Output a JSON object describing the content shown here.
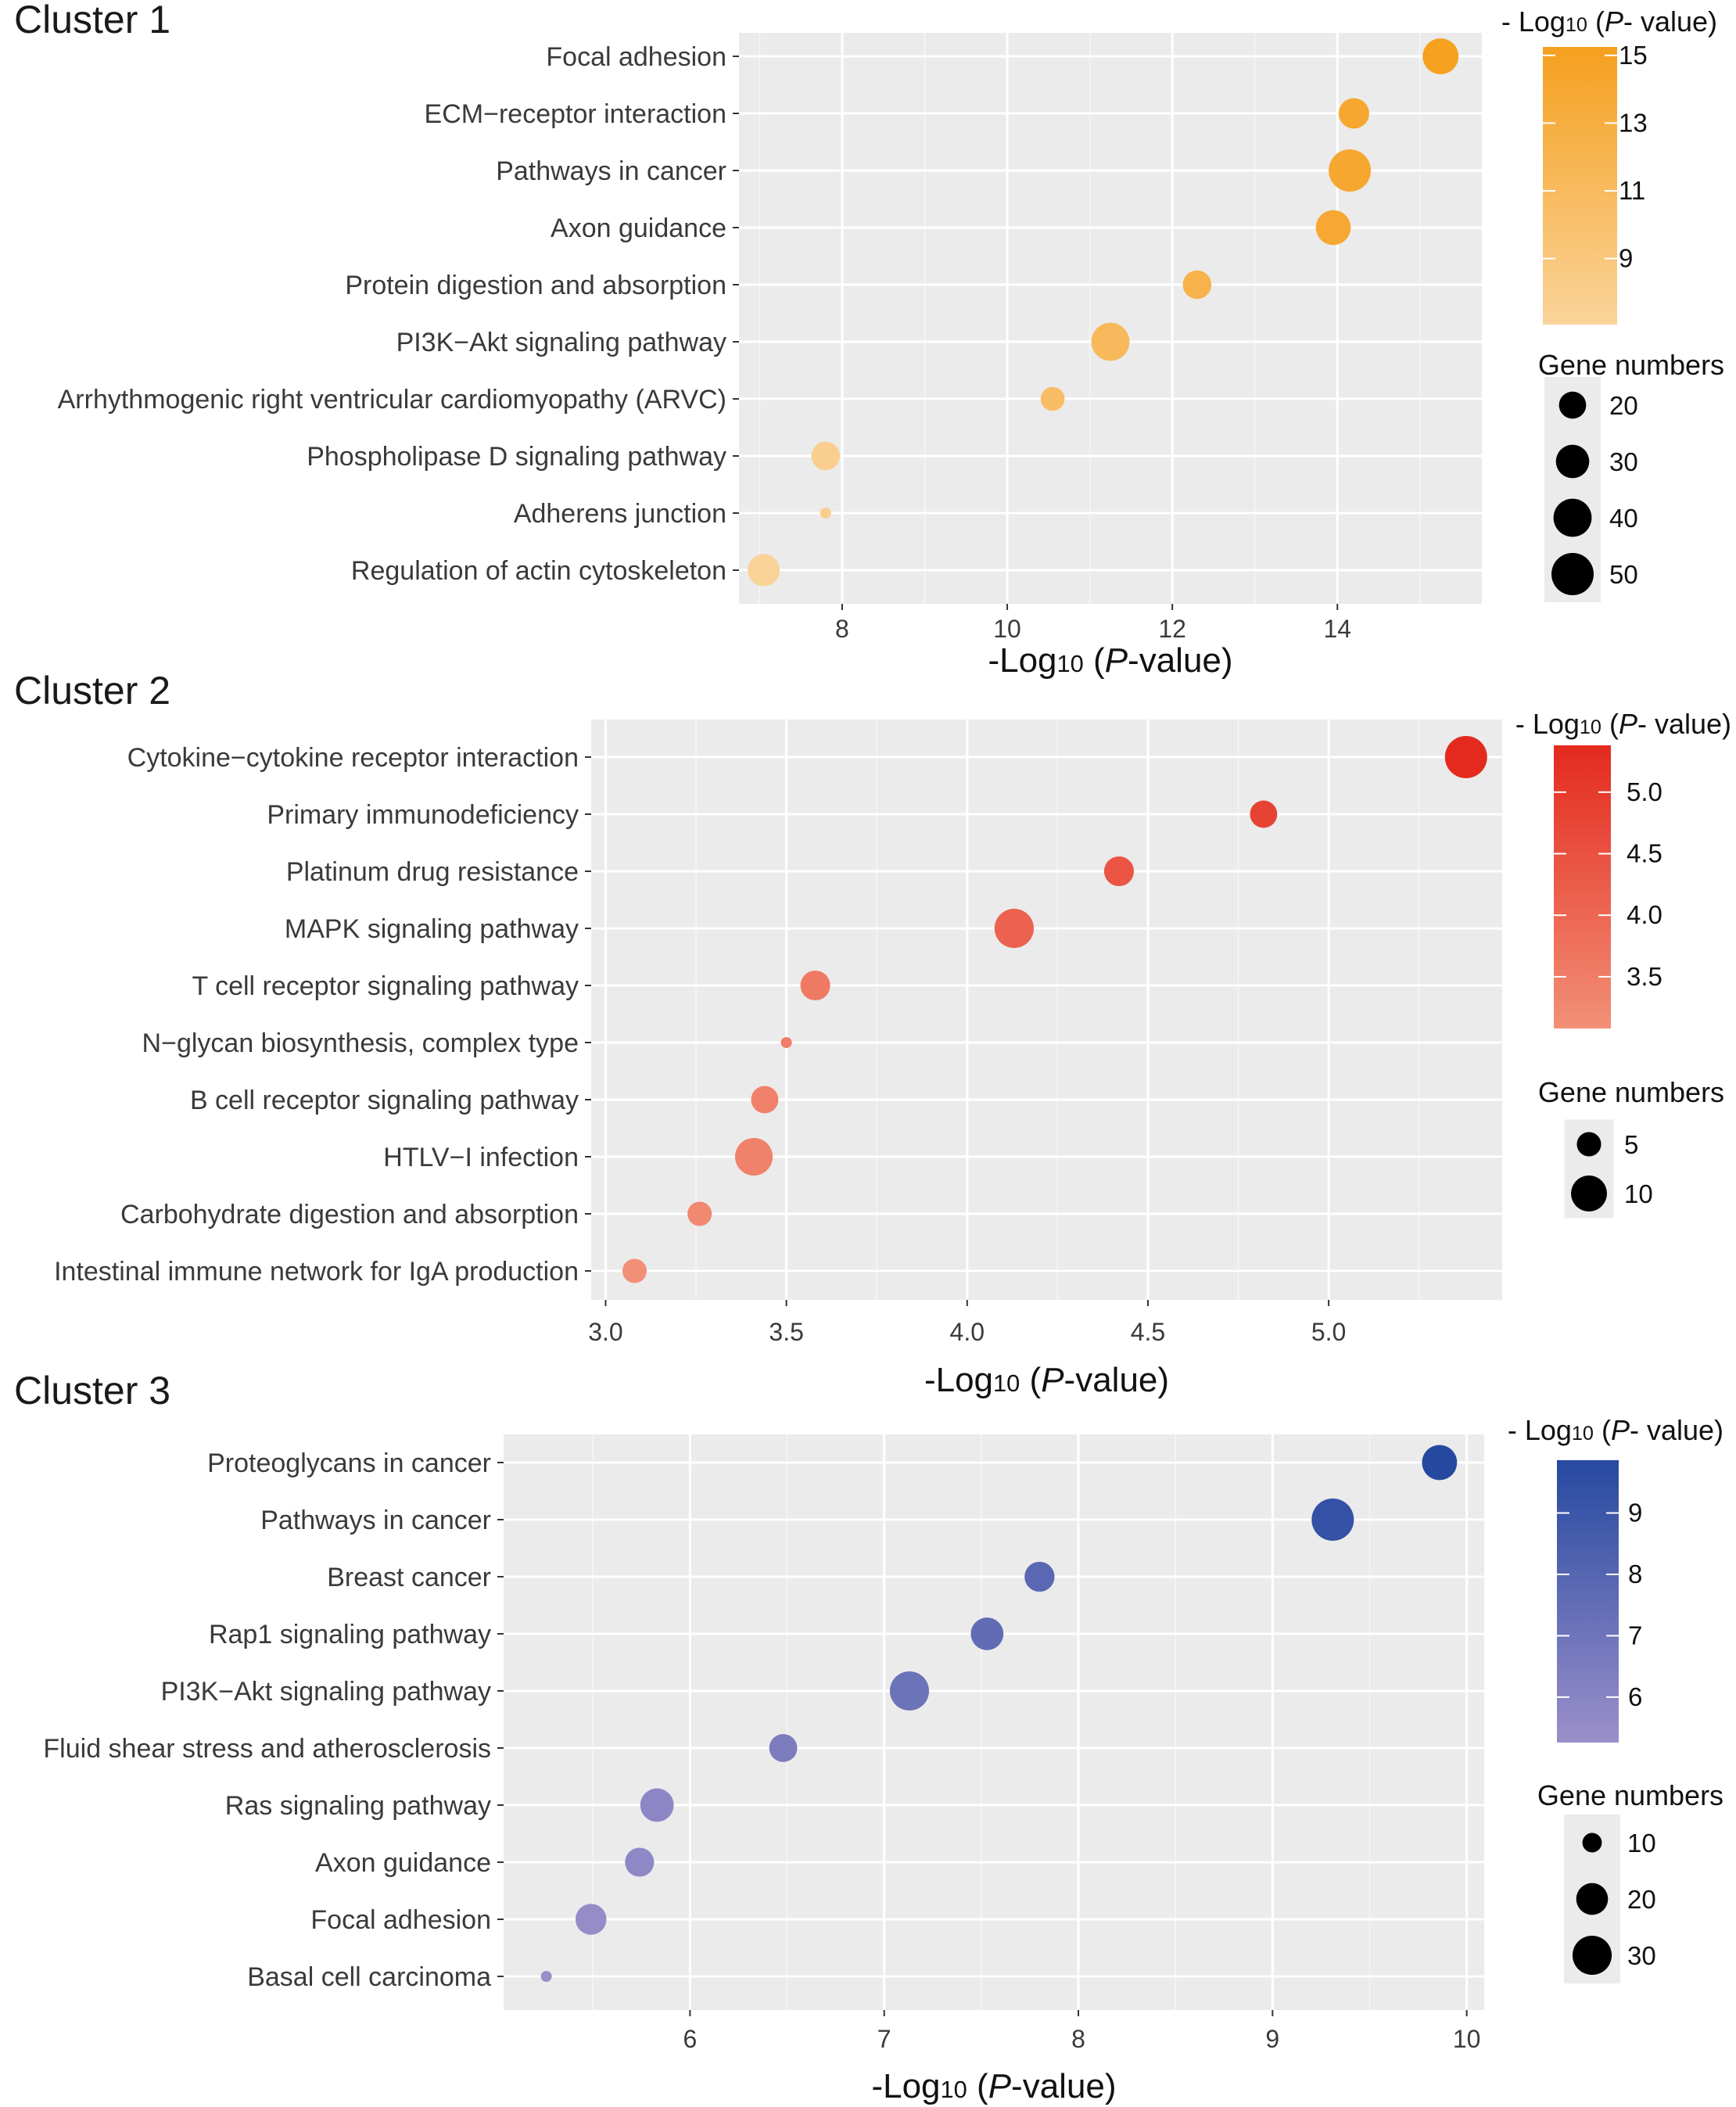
{
  "chart_data": [
    {
      "type": "scatter",
      "title": "Cluster 1",
      "xlabel": {
        "prefix": "-Log",
        "sub": "10",
        "mid": " (",
        "italic": "P",
        "suffix": "-value)"
      },
      "xlim": [
        6.75,
        15.75
      ],
      "xticks": [
        8,
        10,
        12,
        14
      ],
      "categories": [
        "Focal adhesion",
        "ECM−receptor interaction",
        "Pathways in cancer ",
        "Axon guidance",
        "Protein digestion and absorption",
        "PI3K−Akt signaling pathway",
        "Arrhythmogenic right ventricular cardiomyopathy (ARVC)",
        "Phospholipase D signaling pathway",
        "Adherens junction",
        "Regulation of actin cytoskeleton"
      ],
      "x": [
        15.25,
        14.2,
        14.15,
        13.95,
        12.3,
        11.25,
        10.55,
        7.8,
        7.8,
        7.05
      ],
      "gene_numbers": [
        35,
        25,
        50,
        33,
        22,
        40,
        16,
        22,
        9,
        28
      ],
      "color_title": {
        "prefix": "- Log",
        "sub": "10",
        "mid": " (",
        "italic": "P",
        "suffix": "- value)"
      },
      "color_range": [
        7.05,
        15.25
      ],
      "color_low": "#fad399",
      "color_high": "#f5a01f",
      "color_ticks": [
        9,
        11,
        13,
        15
      ],
      "size_title": "Gene numbers",
      "size_ticks": [
        20,
        30,
        40,
        50
      ],
      "size_range": [
        9,
        50
      ]
    },
    {
      "type": "scatter",
      "title": "Cluster 2",
      "xlabel": {
        "prefix": "-Log",
        "sub": "10",
        "mid": " (",
        "italic": "P",
        "suffix": "-value)"
      },
      "xlim": [
        2.96,
        5.48
      ],
      "xticks": [
        3.0,
        3.5,
        4.0,
        4.5,
        5.0
      ],
      "xtick_labels": [
        "3.0",
        "3.5",
        "4.0",
        "4.5",
        "5.0"
      ],
      "categories": [
        "Cytokine−cytokine receptor interaction",
        "Primary immunodeficiency",
        "Platinum drug resistance",
        "MAPK signaling pathway",
        "T cell receptor signaling pathway",
        "N−glycan biosynthesis, complex type",
        "B cell receptor signaling pathway",
        "HTLV−I infection",
        "Carbohydrate digestion and absorption",
        "Intestinal immune network for IgA production"
      ],
      "x": [
        5.38,
        4.82,
        4.42,
        4.13,
        3.58,
        3.5,
        3.44,
        3.41,
        3.26,
        3.08
      ],
      "gene_numbers": [
        14,
        6,
        7,
        12,
        7,
        3,
        6,
        11,
        5,
        5
      ],
      "color_title": {
        "prefix": "- Log",
        "sub": "10",
        "mid": " (",
        "italic": "P",
        "suffix": "- value)"
      },
      "color_range": [
        3.08,
        5.38
      ],
      "color_low": "#f29077",
      "color_high": "#e42a1f",
      "color_ticks": [
        3.5,
        4.0,
        4.5,
        5.0
      ],
      "color_tick_labels": [
        "3.5",
        "4.0",
        "4.5",
        "5.0"
      ],
      "size_title": "Gene numbers",
      "size_ticks": [
        5,
        10
      ],
      "size_range": [
        3,
        14
      ]
    },
    {
      "type": "scatter",
      "title": "Cluster 3",
      "xlabel": {
        "prefix": "-Log",
        "sub": "10",
        "mid": " (",
        "italic": "P",
        "suffix": "-value)"
      },
      "xlim": [
        5.04,
        10.09
      ],
      "xticks": [
        6,
        7,
        8,
        9,
        10
      ],
      "categories": [
        "Proteoglycans in cancer",
        "Pathways in cancer ",
        "Breast cancer",
        "Rap1 signaling pathway",
        "PI3K−Akt signaling pathway",
        "Fluid shear stress and atherosclerosis",
        "Ras signaling pathway",
        "Axon guidance",
        "Focal adhesion",
        "Basal cell carcinoma"
      ],
      "x": [
        9.86,
        9.31,
        7.8,
        7.53,
        7.13,
        6.48,
        5.83,
        5.74,
        5.49,
        5.26
      ],
      "gene_numbers": [
        24,
        35,
        18,
        21,
        30,
        16,
        22,
        17,
        19,
        8
      ],
      "color_title": {
        "prefix": "- Log",
        "sub": "10",
        "mid": " (",
        "italic": "P",
        "suffix": "- value)"
      },
      "color_range": [
        5.26,
        9.86
      ],
      "color_low": "#9b8fca",
      "color_high": "#2649a0",
      "color_ticks": [
        6,
        7,
        8,
        9
      ],
      "size_title": "Gene numbers",
      "size_ticks": [
        10,
        20,
        30
      ],
      "size_range": [
        8,
        35
      ]
    }
  ]
}
